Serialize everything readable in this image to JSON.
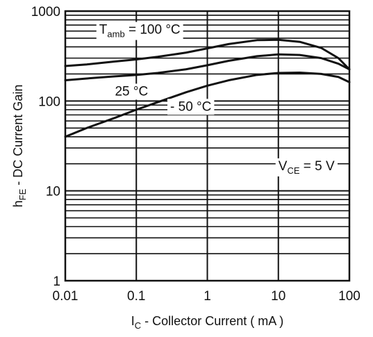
{
  "chart_data": {
    "type": "line",
    "title": "",
    "xlabel": {
      "main": "I",
      "sub": "C",
      "rest": " - Collector Current ( mA )"
    },
    "ylabel": {
      "main": "h",
      "sub": "FE",
      "rest": " - DC Current Gain"
    },
    "x_scale": "log",
    "y_scale": "log",
    "xlim": [
      0.01,
      100
    ],
    "ylim": [
      1,
      1000
    ],
    "x_ticks": [
      {
        "value": 0.01,
        "label": "0.01"
      },
      {
        "value": 0.1,
        "label": "0.1"
      },
      {
        "value": 1,
        "label": "1"
      },
      {
        "value": 10,
        "label": "10"
      },
      {
        "value": 100,
        "label": "100"
      }
    ],
    "y_ticks": [
      {
        "value": 1,
        "label": "1"
      },
      {
        "value": 10,
        "label": "10"
      },
      {
        "value": 100,
        "label": "100"
      },
      {
        "value": 1000,
        "label": "1000"
      }
    ],
    "grid": true,
    "series": [
      {
        "name": "100 °C",
        "x": [
          0.01,
          0.02,
          0.05,
          0.1,
          0.2,
          0.5,
          1,
          2,
          5,
          10,
          20,
          40,
          70,
          100
        ],
        "y": [
          245,
          255,
          275,
          290,
          310,
          345,
          385,
          430,
          475,
          480,
          455,
          390,
          300,
          225
        ]
      },
      {
        "name": "25 °C",
        "x": [
          0.01,
          0.02,
          0.05,
          0.1,
          0.2,
          0.5,
          1,
          2,
          5,
          10,
          20,
          40,
          70,
          100
        ],
        "y": [
          170,
          178,
          188,
          195,
          205,
          225,
          250,
          280,
          315,
          330,
          325,
          300,
          260,
          225
        ]
      },
      {
        "name": "- 50 °C",
        "x": [
          0.01,
          0.02,
          0.05,
          0.1,
          0.2,
          0.5,
          1,
          2,
          5,
          10,
          20,
          40,
          70,
          100
        ],
        "y": [
          40,
          50,
          65,
          80,
          97,
          125,
          148,
          170,
          195,
          205,
          207,
          200,
          185,
          162
        ]
      }
    ],
    "annotations": [
      {
        "id": "t100",
        "main": "T",
        "sub": "amb",
        "rest": " = 100 °C",
        "x": 0.03,
        "y": 560
      },
      {
        "id": "t25",
        "main": "25 °C",
        "sub": "",
        "rest": "",
        "x": 0.05,
        "y": 115
      },
      {
        "id": "tm50",
        "main": "- 50 °C",
        "sub": "",
        "rest": "",
        "x": 0.3,
        "y": 78
      },
      {
        "id": "vce",
        "main": "V",
        "sub": "CE",
        "rest": " = 5 V",
        "x": 10,
        "y": 17
      }
    ]
  }
}
